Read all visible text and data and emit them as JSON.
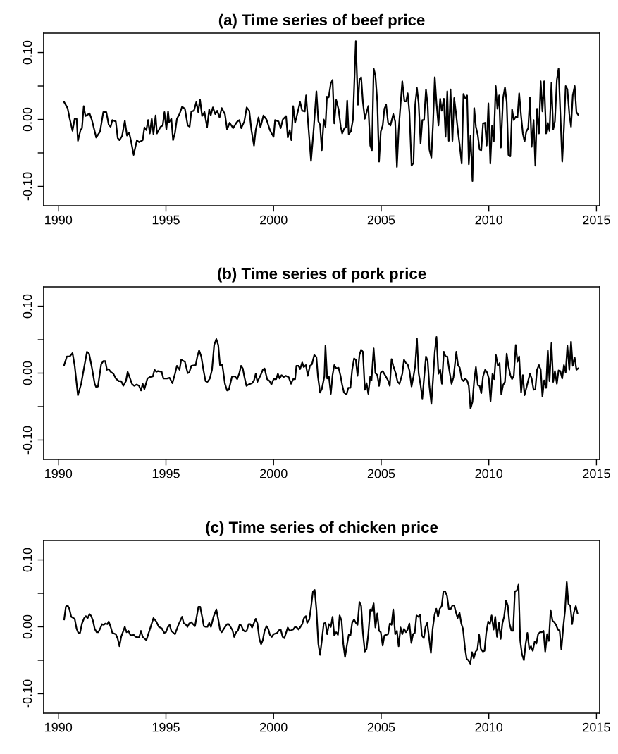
{
  "chart_data": [
    {
      "type": "line",
      "title": "(a) Time series of beef price",
      "xlim": [
        1989.32,
        2015.15
      ],
      "ylim": [
        -0.129,
        0.129
      ],
      "xticks": [
        1990,
        1995,
        2000,
        2005,
        2010,
        2015
      ],
      "yticks": [
        {
          "value": -0.1,
          "label": "-0.10"
        },
        {
          "value": -0.05,
          "label": null
        },
        {
          "value": 0.0,
          "label": "0.00"
        },
        {
          "value": 0.05,
          "label": null
        },
        {
          "value": 0.1,
          "label": "0.10"
        }
      ],
      "grid": false,
      "series": [
        {
          "color": "#000000",
          "x": [
            1990.27,
            1990.43,
            1990.53,
            1990.66,
            1990.76,
            1990.85,
            1990.91,
            1991.03,
            1991.1,
            1991.18,
            1991.26,
            1991.45,
            1991.56,
            1991.76,
            1991.94,
            1992.09,
            1992.23,
            1992.34,
            1992.43,
            1992.51,
            1992.67,
            1992.76,
            1992.84,
            1992.96,
            1993.09,
            1993.19,
            1993.29,
            1993.37,
            1993.5,
            1993.65,
            1993.75,
            1993.92,
            1994.0,
            1994.09,
            1994.17,
            1994.25,
            1994.34,
            1994.42,
            1994.52,
            1994.58,
            1994.75,
            1994.85,
            1994.93,
            1995.02,
            1995.1,
            1995.15,
            1995.25,
            1995.33,
            1995.42,
            1995.51,
            1995.63,
            1995.75,
            1995.88,
            1996.01,
            1996.1,
            1996.18,
            1996.3,
            1996.41,
            1996.5,
            1996.58,
            1996.68,
            1996.79,
            1996.91,
            1997.01,
            1997.08,
            1997.18,
            1997.29,
            1997.38,
            1997.49,
            1997.59,
            1997.74,
            1997.84,
            1997.96,
            1998.12,
            1998.29,
            1998.41,
            1998.5,
            1998.64,
            1998.75,
            1998.87,
            1998.97,
            1999.09,
            1999.17,
            1999.3,
            1999.39,
            1999.53,
            1999.67,
            1999.83,
            2000.0,
            2000.07,
            2000.23,
            2000.33,
            2000.43,
            2000.58,
            2000.66,
            2000.75,
            2000.83,
            2000.91,
            2001.0,
            2001.13,
            2001.23,
            2001.33,
            2001.45,
            2001.51,
            2001.63,
            2001.74,
            2001.86,
            2001.99,
            2002.08,
            2002.16,
            2002.24,
            2002.33,
            2002.41,
            2002.48,
            2002.56,
            2002.66,
            2002.74,
            2002.82,
            2002.91,
            2003.02,
            2003.12,
            2003.19,
            2003.29,
            2003.36,
            2003.42,
            2003.49,
            2003.59,
            2003.69,
            2003.82,
            2003.92,
            2003.99,
            2004.07,
            2004.15,
            2004.24,
            2004.4,
            2004.49,
            2004.57,
            2004.65,
            2004.73,
            2004.82,
            2004.9,
            2004.98,
            2005.07,
            2005.15,
            2005.23,
            2005.32,
            2005.43,
            2005.56,
            2005.65,
            2005.73,
            2005.81,
            2005.98,
            2006.08,
            2006.16,
            2006.23,
            2006.31,
            2006.41,
            2006.5,
            2006.58,
            2006.66,
            2006.74,
            2006.83,
            2006.91,
            2006.99,
            2007.08,
            2007.16,
            2007.24,
            2007.33,
            2007.41,
            2007.49,
            2007.57,
            2007.66,
            2007.74,
            2007.81,
            2007.91,
            2007.99,
            2008.07,
            2008.14,
            2008.22,
            2008.31,
            2008.39,
            2008.47,
            2008.56,
            2008.64,
            2008.74,
            2008.82,
            2008.9,
            2008.99,
            2009.07,
            2009.15,
            2009.24,
            2009.32,
            2009.4,
            2009.49,
            2009.57,
            2009.65,
            2009.73,
            2009.82,
            2009.9,
            2009.98,
            2010.07,
            2010.15,
            2010.23,
            2010.32,
            2010.4,
            2010.48,
            2010.56,
            2010.66,
            2010.75,
            2010.83,
            2010.91,
            2011.0,
            2011.08,
            2011.16,
            2011.25,
            2011.33,
            2011.41,
            2011.5,
            2011.58,
            2011.66,
            2011.74,
            2011.83,
            2011.91,
            2011.99,
            2012.08,
            2012.16,
            2012.24,
            2012.33,
            2012.41,
            2012.49,
            2012.57,
            2012.66,
            2012.74,
            2012.82,
            2012.91,
            2012.99,
            2013.07,
            2013.16,
            2013.24,
            2013.32,
            2013.41,
            2013.49,
            2013.57,
            2013.65,
            2013.74,
            2013.82,
            2013.9,
            2013.99,
            2014.07,
            2014.15
          ],
          "values": [
            0.026,
            0.017,
            0.001,
            -0.017,
            0.001,
            0.001,
            -0.032,
            -0.016,
            -0.013,
            0.02,
            0.005,
            0.009,
            -0.001,
            -0.027,
            -0.018,
            0.011,
            0.011,
            -0.008,
            -0.011,
            -0.001,
            -0.003,
            -0.028,
            -0.031,
            -0.025,
            -0.002,
            -0.024,
            -0.02,
            -0.031,
            -0.053,
            -0.031,
            -0.034,
            -0.031,
            -0.012,
            -0.016,
            -0.001,
            -0.021,
            0.001,
            -0.022,
            0.006,
            -0.021,
            -0.011,
            -0.009,
            0.011,
            -0.015,
            0.012,
            -0.004,
            0.001,
            -0.031,
            -0.02,
            0.001,
            0.008,
            0.019,
            0.016,
            -0.009,
            -0.011,
            0.012,
            0.013,
            0.026,
            0.011,
            0.03,
            0.005,
            0.011,
            -0.012,
            0.015,
            0.006,
            0.018,
            0.008,
            0.013,
            0.003,
            0.017,
            0.008,
            -0.015,
            -0.005,
            -0.013,
            -0.004,
            -0.001,
            -0.013,
            -0.003,
            0.018,
            0.013,
            -0.016,
            -0.039,
            -0.016,
            0.003,
            -0.012,
            0.006,
            0.0,
            -0.016,
            -0.026,
            -0.001,
            -0.003,
            -0.013,
            0.0,
            0.005,
            -0.027,
            -0.016,
            -0.031,
            0.02,
            -0.005,
            0.012,
            0.026,
            0.013,
            0.012,
            0.036,
            -0.016,
            -0.062,
            -0.016,
            0.042,
            -0.003,
            -0.008,
            -0.046,
            0.0,
            -0.011,
            0.034,
            0.033,
            0.054,
            0.059,
            -0.006,
            0.029,
            0.015,
            -0.011,
            -0.021,
            -0.013,
            -0.012,
            0.028,
            -0.022,
            -0.018,
            0.0,
            0.117,
            0.022,
            0.059,
            0.063,
            0.026,
            0.001,
            0.02,
            -0.039,
            -0.046,
            0.076,
            0.066,
            0.026,
            -0.063,
            -0.018,
            -0.009,
            0.016,
            0.022,
            -0.005,
            -0.009,
            0.008,
            -0.003,
            -0.071,
            -0.016,
            0.057,
            0.027,
            0.027,
            0.039,
            0.011,
            -0.069,
            -0.065,
            0.022,
            0.047,
            0.024,
            -0.036,
            -0.001,
            -0.001,
            0.045,
            0.021,
            -0.045,
            -0.057,
            -0.005,
            0.063,
            0.024,
            -0.009,
            0.031,
            0.013,
            0.031,
            -0.026,
            0.042,
            -0.032,
            0.045,
            -0.032,
            0.032,
            0.011,
            -0.016,
            -0.037,
            -0.066,
            0.038,
            0.032,
            0.036,
            -0.067,
            -0.024,
            -0.092,
            0.017,
            -0.011,
            -0.024,
            -0.045,
            -0.046,
            -0.006,
            -0.005,
            -0.039,
            0.024,
            -0.066,
            -0.009,
            -0.033,
            0.05,
            0.016,
            0.036,
            -0.042,
            0.032,
            0.048,
            0.026,
            -0.053,
            -0.055,
            0.015,
            -0.001,
            0.004,
            0.003,
            0.039,
            0.005,
            -0.021,
            -0.033,
            -0.018,
            -0.013,
            0.033,
            -0.041,
            -0.001,
            -0.069,
            0.016,
            -0.021,
            0.057,
            0.012,
            0.057,
            -0.021,
            -0.005,
            -0.017,
            0.055,
            -0.015,
            -0.003,
            0.059,
            0.076,
            0.011,
            -0.063,
            -0.013,
            0.05,
            0.045,
            0.008,
            -0.011,
            0.036,
            0.05,
            0.011,
            0.007
          ]
        }
      ]
    },
    {
      "type": "line",
      "title": "(b) Time series of pork price",
      "xlim": [
        1989.32,
        2015.15
      ],
      "ylim": [
        -0.129,
        0.129
      ],
      "xticks": [
        1990,
        1995,
        2000,
        2005,
        2010,
        2015
      ],
      "yticks": [
        {
          "value": -0.1,
          "label": "-0.10"
        },
        {
          "value": -0.05,
          "label": null
        },
        {
          "value": 0.0,
          "label": "0.00"
        },
        {
          "value": 0.05,
          "label": null
        },
        {
          "value": 0.1,
          "label": "0.10"
        }
      ],
      "grid": false,
      "series": [
        {
          "color": "#000000",
          "x": [
            1990.27,
            1990.4,
            1990.53,
            1990.66,
            1990.76,
            1990.91,
            1991.06,
            1991.33,
            1991.43,
            1991.56,
            1991.69,
            1991.76,
            1991.84,
            1991.99,
            1992.09,
            1992.18,
            1992.26,
            1992.34,
            1992.43,
            1992.56,
            1992.67,
            1992.81,
            1992.92,
            1993.02,
            1993.14,
            1993.22,
            1993.31,
            1993.42,
            1993.52,
            1993.64,
            1993.75,
            1993.84,
            1993.92,
            1994.0,
            1994.14,
            1994.25,
            1994.39,
            1994.47,
            1994.55,
            1994.63,
            1994.8,
            1994.88,
            1995.05,
            1995.17,
            1995.3,
            1995.42,
            1995.51,
            1995.63,
            1995.71,
            1995.88,
            1996.01,
            1996.08,
            1996.18,
            1996.38,
            1996.46,
            1996.54,
            1996.64,
            1996.74,
            1996.84,
            1996.93,
            1997.04,
            1997.14,
            1997.24,
            1997.34,
            1997.43,
            1997.51,
            1997.62,
            1997.74,
            1997.84,
            1997.92,
            1998.07,
            1998.21,
            1998.31,
            1998.41,
            1998.49,
            1998.57,
            1998.64,
            1998.74,
            1998.84,
            1998.92,
            1999.0,
            1999.09,
            1999.17,
            1999.25,
            1999.4,
            1999.5,
            1999.58,
            1999.7,
            1999.82,
            1999.9,
            2000.0,
            2000.12,
            2000.2,
            2000.28,
            2000.37,
            2000.47,
            2000.56,
            2000.7,
            2000.81,
            2000.91,
            2001.0,
            2001.06,
            2001.16,
            2001.23,
            2001.33,
            2001.4,
            2001.5,
            2001.59,
            2001.69,
            2001.78,
            2001.89,
            2001.99,
            2002.06,
            2002.16,
            2002.24,
            2002.36,
            2002.41,
            2002.49,
            2002.57,
            2002.66,
            2002.74,
            2002.82,
            2002.91,
            2003.02,
            2003.11,
            2003.19,
            2003.27,
            2003.39,
            2003.47,
            2003.57,
            2003.65,
            2003.74,
            2003.82,
            2003.9,
            2003.99,
            2004.07,
            2004.15,
            2004.24,
            2004.32,
            2004.4,
            2004.49,
            2004.55,
            2004.65,
            2004.73,
            2004.82,
            2004.9,
            2004.98,
            2005.07,
            2005.18,
            2005.32,
            2005.4,
            2005.48,
            2005.56,
            2005.68,
            2005.76,
            2005.85,
            2005.98,
            2006.06,
            2006.15,
            2006.23,
            2006.31,
            2006.41,
            2006.5,
            2006.58,
            2006.66,
            2006.74,
            2006.83,
            2006.91,
            2006.99,
            2007.08,
            2007.16,
            2007.24,
            2007.33,
            2007.41,
            2007.49,
            2007.57,
            2007.66,
            2007.74,
            2007.82,
            2007.91,
            2007.99,
            2008.07,
            2008.17,
            2008.27,
            2008.36,
            2008.49,
            2008.57,
            2008.65,
            2008.74,
            2008.82,
            2008.9,
            2008.99,
            2009.07,
            2009.15,
            2009.24,
            2009.32,
            2009.4,
            2009.49,
            2009.57,
            2009.65,
            2009.73,
            2009.83,
            2009.92,
            2010.0,
            2010.08,
            2010.17,
            2010.25,
            2010.33,
            2010.42,
            2010.5,
            2010.58,
            2010.66,
            2010.75,
            2010.83,
            2010.91,
            2011.0,
            2011.08,
            2011.16,
            2011.25,
            2011.33,
            2011.41,
            2011.5,
            2011.58,
            2011.66,
            2011.83,
            2011.91,
            2011.99,
            2012.08,
            2012.16,
            2012.24,
            2012.33,
            2012.41,
            2012.49,
            2012.57,
            2012.66,
            2012.74,
            2012.82,
            2012.91,
            2012.99,
            2013.07,
            2013.16,
            2013.24,
            2013.32,
            2013.41,
            2013.49,
            2013.57,
            2013.65,
            2013.74,
            2013.82,
            2013.9,
            2013.99,
            2014.07,
            2014.15
          ],
          "values": [
            0.012,
            0.025,
            0.025,
            0.03,
            0.011,
            -0.033,
            -0.016,
            0.032,
            0.029,
            0.008,
            -0.016,
            -0.021,
            -0.02,
            0.013,
            0.018,
            0.018,
            0.005,
            0.006,
            0.002,
            -0.001,
            -0.008,
            -0.012,
            -0.012,
            -0.019,
            -0.012,
            0.002,
            -0.006,
            -0.016,
            -0.019,
            -0.017,
            -0.019,
            -0.026,
            -0.016,
            -0.024,
            -0.008,
            -0.006,
            -0.005,
            0.005,
            0.002,
            0.003,
            0.002,
            -0.008,
            -0.008,
            -0.007,
            -0.015,
            -0.001,
            0.011,
            0.005,
            0.02,
            0.017,
            0.0,
            0.001,
            0.011,
            0.012,
            0.025,
            0.034,
            0.025,
            0.005,
            -0.012,
            -0.013,
            -0.008,
            0.005,
            0.042,
            0.051,
            0.042,
            0.012,
            0.012,
            -0.016,
            -0.026,
            -0.025,
            -0.005,
            -0.005,
            -0.009,
            0.0,
            0.011,
            0.007,
            -0.005,
            -0.019,
            -0.017,
            -0.016,
            -0.015,
            -0.011,
            -0.001,
            -0.013,
            -0.003,
            0.005,
            0.007,
            -0.009,
            -0.012,
            -0.017,
            -0.009,
            -0.009,
            -0.001,
            -0.008,
            -0.003,
            -0.006,
            -0.004,
            -0.006,
            -0.016,
            -0.009,
            -0.009,
            0.011,
            0.011,
            0.006,
            0.016,
            0.009,
            0.012,
            -0.004,
            0.011,
            0.013,
            0.027,
            0.024,
            -0.005,
            -0.029,
            -0.024,
            -0.005,
            0.041,
            -0.008,
            -0.005,
            -0.031,
            -0.003,
            0.012,
            0.007,
            0.008,
            -0.004,
            -0.018,
            -0.029,
            -0.032,
            -0.022,
            -0.022,
            0.005,
            0.022,
            0.02,
            -0.004,
            0.027,
            0.035,
            0.032,
            -0.025,
            -0.015,
            -0.031,
            -0.005,
            -0.011,
            0.037,
            0.0,
            -0.003,
            -0.019,
            0.001,
            0.003,
            -0.003,
            -0.011,
            -0.019,
            0.021,
            0.011,
            -0.001,
            -0.013,
            -0.016,
            -0.001,
            0.02,
            0.015,
            0.013,
            0.004,
            -0.02,
            -0.005,
            0.011,
            0.052,
            0.0,
            -0.018,
            -0.038,
            -0.008,
            0.025,
            0.018,
            -0.02,
            -0.046,
            -0.008,
            0.032,
            0.054,
            -0.001,
            0.005,
            -0.016,
            0.032,
            0.025,
            0.025,
            0.003,
            -0.016,
            -0.006,
            0.032,
            0.012,
            0.008,
            -0.009,
            -0.012,
            -0.008,
            -0.011,
            -0.019,
            -0.053,
            -0.043,
            -0.011,
            0.009,
            -0.018,
            -0.019,
            -0.03,
            -0.005,
            0.005,
            0.001,
            -0.008,
            -0.042,
            -0.001,
            -0.009,
            0.027,
            0.011,
            0.015,
            -0.032,
            -0.018,
            -0.013,
            0.029,
            0.011,
            -0.003,
            -0.009,
            -0.004,
            0.042,
            0.017,
            0.025,
            -0.029,
            -0.003,
            -0.033,
            -0.011,
            -0.001,
            -0.008,
            -0.025,
            -0.024,
            0.005,
            0.012,
            0.005,
            -0.035,
            -0.011,
            -0.022,
            0.034,
            -0.012,
            0.045,
            -0.013,
            0.003,
            -0.016,
            0.004,
            0.003,
            -0.008,
            0.012,
            0.001,
            0.041,
            0.005,
            0.047,
            0.011,
            0.023,
            0.005,
            0.007
          ]
        }
      ]
    },
    {
      "type": "line",
      "title": "(c) Time series of chicken price",
      "xlim": [
        1989.32,
        2015.15
      ],
      "ylim": [
        -0.129,
        0.129
      ],
      "xticks": [
        1990,
        1995,
        2000,
        2005,
        2010,
        2015
      ],
      "yticks": [
        {
          "value": -0.1,
          "label": "-0.10"
        },
        {
          "value": -0.05,
          "label": null
        },
        {
          "value": 0.0,
          "label": "0.00"
        },
        {
          "value": 0.05,
          "label": null
        },
        {
          "value": 0.1,
          "label": "0.10"
        }
      ],
      "grid": false,
      "series": [
        {
          "color": "#000000",
          "x": [
            1990.27,
            1990.35,
            1990.43,
            1990.51,
            1990.6,
            1990.76,
            1990.85,
            1990.93,
            1991.01,
            1991.1,
            1991.2,
            1991.28,
            1991.36,
            1991.45,
            1991.53,
            1991.61,
            1991.69,
            1991.78,
            1991.86,
            1991.94,
            1992.03,
            1992.11,
            1992.19,
            1992.28,
            1992.34,
            1992.43,
            1992.51,
            1992.67,
            1992.76,
            1992.84,
            1992.92,
            1993.09,
            1993.17,
            1993.26,
            1993.34,
            1993.42,
            1993.5,
            1993.59,
            1993.75,
            1993.84,
            1993.92,
            1994.09,
            1994.17,
            1994.42,
            1994.55,
            1994.67,
            1994.8,
            1994.92,
            1995.0,
            1995.08,
            1995.17,
            1995.25,
            1995.42,
            1995.58,
            1995.75,
            1995.83,
            1995.91,
            1996.0,
            1996.08,
            1996.18,
            1996.26,
            1996.35,
            1996.51,
            1996.59,
            1996.68,
            1996.76,
            1996.84,
            1996.93,
            1997.01,
            1997.09,
            1997.21,
            1997.34,
            1997.43,
            1997.51,
            1997.59,
            1997.71,
            1997.84,
            1997.92,
            1998.09,
            1998.17,
            1998.26,
            1998.34,
            1998.42,
            1998.5,
            1998.59,
            1998.67,
            1998.75,
            1998.84,
            1998.92,
            1999.0,
            1999.17,
            1999.25,
            1999.34,
            1999.42,
            1999.5,
            1999.58,
            1999.67,
            1999.75,
            1999.83,
            1999.92,
            2000.0,
            2000.17,
            2000.25,
            2000.33,
            2000.42,
            2000.5,
            2000.66,
            2000.75,
            2000.91,
            2001.0,
            2001.08,
            2001.16,
            2001.25,
            2001.33,
            2001.41,
            2001.5,
            2001.56,
            2001.66,
            2001.74,
            2001.83,
            2001.91,
            2001.99,
            2002.08,
            2002.16,
            2002.24,
            2002.33,
            2002.41,
            2002.49,
            2002.57,
            2002.66,
            2002.74,
            2002.82,
            2002.91,
            2002.99,
            2003.07,
            2003.16,
            2003.24,
            2003.32,
            2003.41,
            2003.49,
            2003.57,
            2003.65,
            2003.74,
            2003.82,
            2003.9,
            2003.99,
            2004.07,
            2004.15,
            2004.24,
            2004.32,
            2004.4,
            2004.49,
            2004.57,
            2004.65,
            2004.73,
            2004.82,
            2004.9,
            2004.98,
            2005.07,
            2005.15,
            2005.23,
            2005.32,
            2005.4,
            2005.48,
            2005.56,
            2005.65,
            2005.73,
            2005.81,
            2005.9,
            2005.98,
            2006.06,
            2006.15,
            2006.23,
            2006.31,
            2006.4,
            2006.48,
            2006.56,
            2006.64,
            2006.73,
            2006.81,
            2006.89,
            2006.98,
            2007.06,
            2007.14,
            2007.23,
            2007.31,
            2007.39,
            2007.48,
            2007.56,
            2007.64,
            2007.72,
            2007.81,
            2007.89,
            2007.97,
            2008.06,
            2008.14,
            2008.22,
            2008.31,
            2008.39,
            2008.47,
            2008.55,
            2008.64,
            2008.72,
            2008.8,
            2008.89,
            2008.97,
            2009.05,
            2009.14,
            2009.22,
            2009.3,
            2009.39,
            2009.47,
            2009.55,
            2009.63,
            2009.72,
            2009.8,
            2009.88,
            2009.97,
            2010.05,
            2010.13,
            2010.22,
            2010.3,
            2010.38,
            2010.47,
            2010.55,
            2010.63,
            2010.71,
            2010.8,
            2010.88,
            2010.96,
            2011.05,
            2011.13,
            2011.21,
            2011.3,
            2011.38,
            2011.46,
            2011.54,
            2011.63,
            2011.71,
            2011.79,
            2011.88,
            2011.96,
            2012.04,
            2012.13,
            2012.21,
            2012.29,
            2012.38,
            2012.46,
            2012.54,
            2012.62,
            2012.71,
            2012.79,
            2012.87,
            2012.96,
            2013.04,
            2013.12,
            2013.21,
            2013.29,
            2013.37,
            2013.46,
            2013.54,
            2013.62,
            2013.7,
            2013.79,
            2013.87,
            2013.95,
            2014.04,
            2014.12
          ],
          "values": [
            0.011,
            0.03,
            0.032,
            0.027,
            0.015,
            0.012,
            -0.003,
            -0.009,
            -0.009,
            0.005,
            0.013,
            0.016,
            0.013,
            0.019,
            0.016,
            0.009,
            -0.003,
            -0.008,
            -0.008,
            -0.003,
            0.004,
            0.003,
            0.005,
            0.004,
            0.008,
            0.0,
            -0.009,
            -0.011,
            -0.018,
            -0.029,
            -0.015,
            0.0,
            -0.008,
            -0.006,
            -0.012,
            -0.013,
            -0.012,
            -0.015,
            -0.016,
            -0.006,
            -0.015,
            -0.02,
            -0.012,
            0.013,
            0.008,
            0.0,
            -0.002,
            -0.009,
            -0.008,
            -0.001,
            0.003,
            -0.006,
            -0.011,
            0.003,
            0.015,
            0.005,
            0.004,
            0.0,
            0.005,
            0.007,
            0.004,
            0.001,
            0.03,
            0.03,
            0.015,
            0.001,
            0.0,
            0.0,
            0.006,
            0.0,
            0.015,
            0.026,
            0.011,
            -0.004,
            -0.008,
            -0.002,
            0.004,
            0.004,
            -0.005,
            -0.015,
            -0.008,
            -0.006,
            0.003,
            0.002,
            -0.005,
            -0.007,
            -0.006,
            0.004,
            0.004,
            -0.001,
            0.012,
            0.005,
            -0.018,
            -0.026,
            -0.02,
            -0.006,
            0.001,
            -0.003,
            -0.012,
            -0.015,
            -0.011,
            -0.009,
            -0.005,
            -0.004,
            -0.015,
            -0.017,
            -0.001,
            -0.006,
            -0.004,
            0.0,
            -0.001,
            -0.004,
            0.0,
            0.004,
            0.013,
            0.016,
            0.006,
            0.011,
            0.029,
            0.053,
            0.055,
            0.026,
            -0.026,
            -0.042,
            -0.021,
            0.005,
            0.006,
            -0.011,
            0.004,
            0.0,
            0.015,
            -0.013,
            -0.008,
            -0.012,
            0.017,
            0.009,
            -0.026,
            -0.045,
            -0.027,
            -0.012,
            -0.013,
            0.006,
            0.011,
            0.006,
            0.003,
            0.037,
            0.031,
            -0.009,
            -0.037,
            -0.033,
            -0.011,
            0.026,
            0.024,
            0.035,
            -0.001,
            0.02,
            -0.006,
            -0.008,
            -0.028,
            -0.013,
            -0.012,
            -0.011,
            0.005,
            0.003,
            0.026,
            -0.011,
            -0.006,
            -0.029,
            -0.001,
            -0.011,
            -0.003,
            -0.008,
            -0.004,
            0.005,
            -0.024,
            -0.011,
            -0.009,
            0.017,
            0.015,
            0.018,
            -0.013,
            -0.017,
            0.0,
            0.006,
            -0.018,
            -0.039,
            -0.003,
            0.018,
            0.027,
            0.015,
            0.027,
            0.031,
            0.053,
            0.053,
            0.046,
            0.027,
            0.026,
            0.032,
            0.032,
            0.022,
            0.013,
            0.021,
            0.005,
            -0.003,
            -0.031,
            -0.048,
            -0.05,
            -0.055,
            -0.038,
            -0.047,
            -0.037,
            -0.034,
            -0.012,
            -0.033,
            -0.037,
            -0.036,
            -0.009,
            0.008,
            0.004,
            0.017,
            -0.004,
            0.015,
            -0.015,
            0.006,
            -0.018,
            0.005,
            0.015,
            0.039,
            0.032,
            0.005,
            -0.006,
            -0.006,
            0.053,
            0.054,
            0.063,
            -0.021,
            -0.041,
            -0.05,
            -0.026,
            -0.009,
            -0.033,
            -0.029,
            -0.036,
            -0.022,
            -0.025,
            -0.011,
            -0.008,
            -0.008,
            -0.006,
            -0.037,
            -0.011,
            -0.021,
            0.025,
            0.009,
            0.007,
            0.003,
            -0.004,
            -0.006,
            -0.034,
            0.0,
            0.024,
            0.067,
            0.034,
            0.031,
            0.004,
            0.021,
            0.031,
            0.02
          ]
        }
      ]
    }
  ]
}
